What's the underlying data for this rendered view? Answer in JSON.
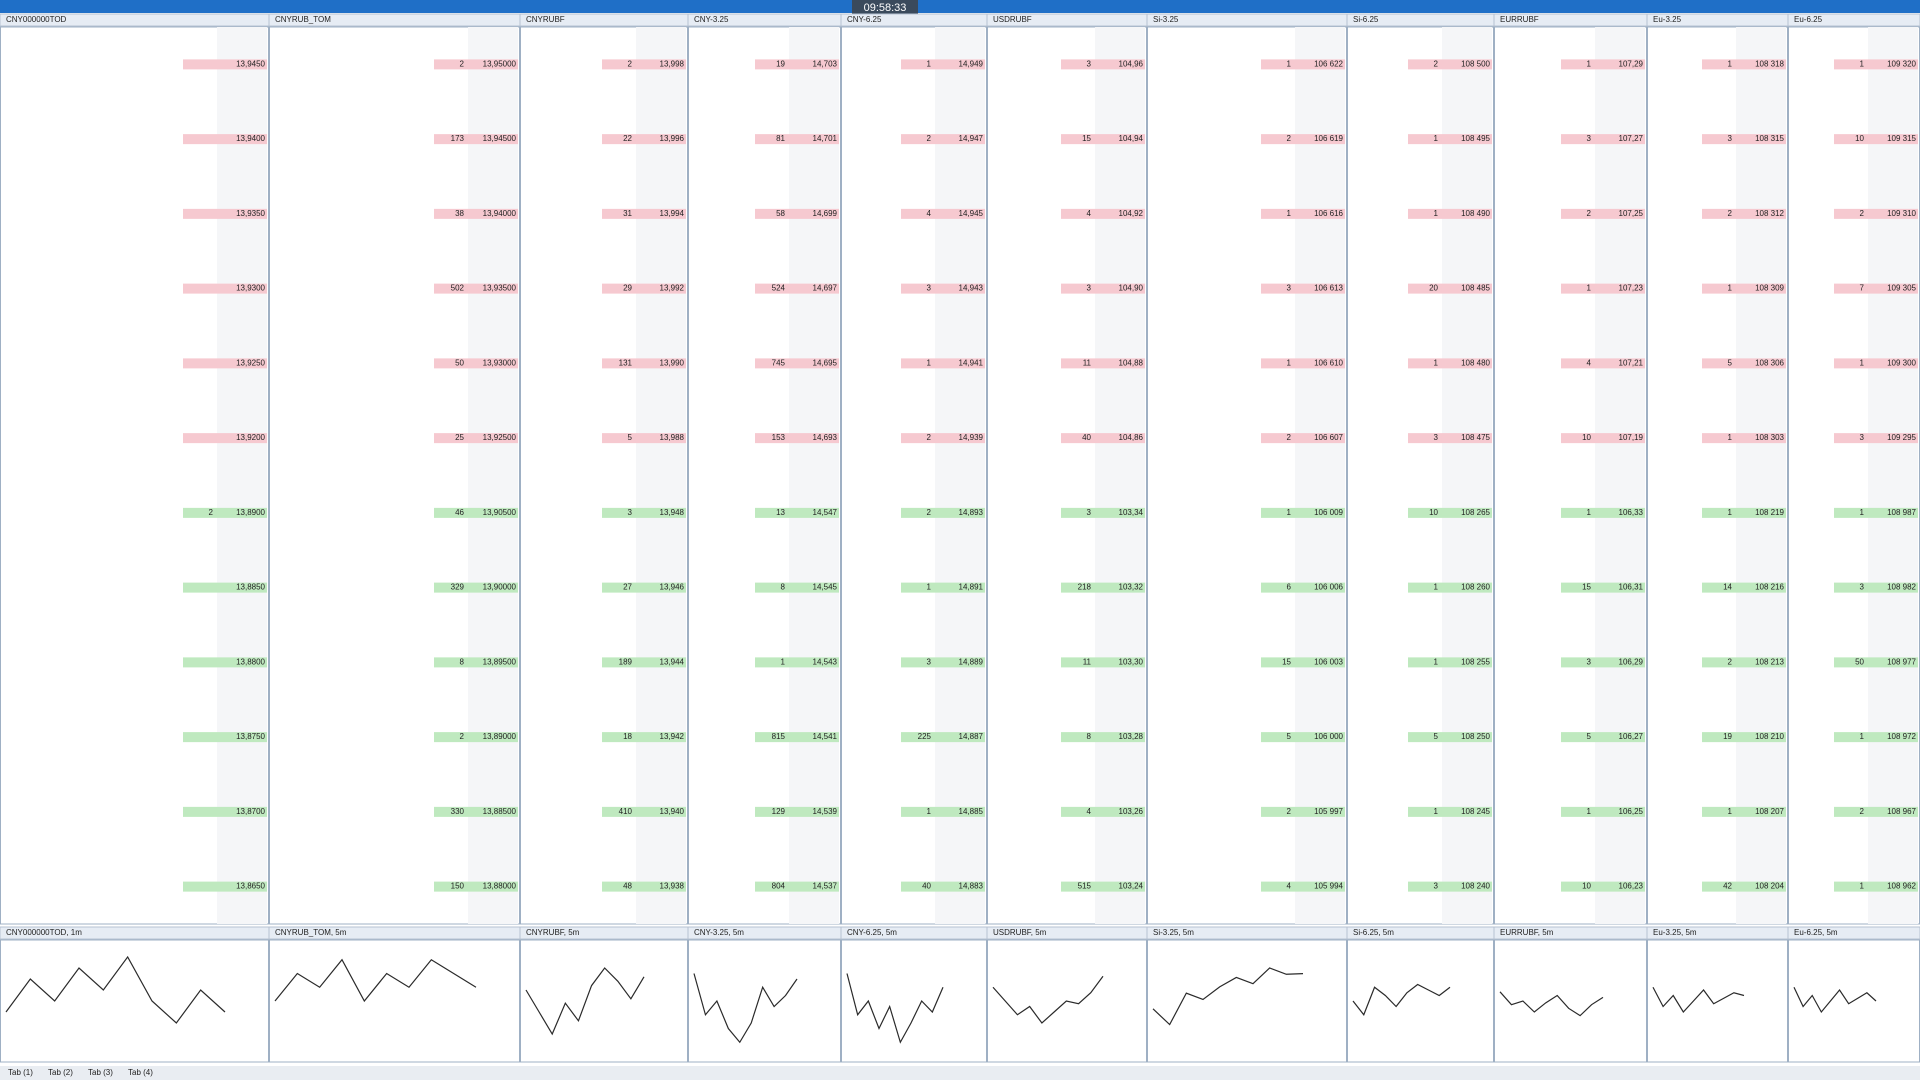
{
  "header": {
    "clock": "09:58:33"
  },
  "panels": [
    {
      "title": "CNY000000TOD",
      "asks": [
        [
          "13,9450",
          null
        ],
        [
          "13,9400",
          null
        ],
        [
          "13,9350",
          null
        ],
        [
          "13,9300",
          null
        ],
        [
          "13,9250",
          null
        ],
        [
          "13,9200",
          null
        ]
      ],
      "bids": [
        [
          "13,8900",
          2
        ],
        [
          "13,8850",
          null
        ],
        [
          "13,8800",
          null
        ],
        [
          "13,8750",
          null
        ],
        [
          "13,8700",
          null
        ],
        [
          "13,8650",
          null
        ]
      ]
    },
    {
      "title": "CNYRUB_TOM",
      "asks": [
        [
          "13,95000",
          2
        ],
        [
          "13,94500",
          173
        ],
        [
          "13,94000",
          38
        ],
        [
          "13,93500",
          502
        ],
        [
          "13,93000",
          50
        ],
        [
          "13,92500",
          25
        ]
      ],
      "bids": [
        [
          "13,90500",
          46
        ],
        [
          "13,90000",
          329
        ],
        [
          "13,89500",
          8
        ],
        [
          "13,89000",
          2
        ],
        [
          "13,88500",
          330
        ],
        [
          "13,88000",
          150
        ]
      ]
    },
    {
      "title": "CNYRUBF",
      "asks": [
        [
          "13,998",
          2
        ],
        [
          "13,996",
          22
        ],
        [
          "13,994",
          31
        ],
        [
          "13,992",
          29
        ],
        [
          "13,990",
          131
        ],
        [
          "13,988",
          5
        ]
      ],
      "bids": [
        [
          "13,948",
          3
        ],
        [
          "13,946",
          27
        ],
        [
          "13,944",
          189
        ],
        [
          "13,942",
          18
        ],
        [
          "13,940",
          410
        ],
        [
          "13,938",
          48
        ]
      ]
    },
    {
      "title": "CNY-3.25",
      "asks": [
        [
          "14,703",
          19
        ],
        [
          "14,701",
          81
        ],
        [
          "14,699",
          58
        ],
        [
          "14,697",
          524
        ],
        [
          "14,695",
          745
        ],
        [
          "14,693",
          153
        ]
      ],
      "bids": [
        [
          "14,547",
          13
        ],
        [
          "14,545",
          8
        ],
        [
          "14,543",
          1
        ],
        [
          "14,541",
          815
        ],
        [
          "14,539",
          129
        ],
        [
          "14,537",
          804
        ]
      ]
    },
    {
      "title": "CNY-6.25",
      "asks": [
        [
          "14,949",
          1
        ],
        [
          "14,947",
          2
        ],
        [
          "14,945",
          4
        ],
        [
          "14,943",
          3
        ],
        [
          "14,941",
          1
        ],
        [
          "14,939",
          2
        ]
      ],
      "bids": [
        [
          "14,893",
          2
        ],
        [
          "14,891",
          1
        ],
        [
          "14,889",
          3
        ],
        [
          "14,887",
          225
        ],
        [
          "14,885",
          1
        ],
        [
          "14,883",
          40
        ]
      ]
    },
    {
      "title": "USDRUBF",
      "asks": [
        [
          "104,96",
          3
        ],
        [
          "104,94",
          15
        ],
        [
          "104,92",
          4
        ],
        [
          "104,90",
          3
        ],
        [
          "104,88",
          11
        ],
        [
          "104,86",
          40
        ]
      ],
      "bids": [
        [
          "103,34",
          3
        ],
        [
          "103,32",
          218
        ],
        [
          "103,30",
          11
        ],
        [
          "103,28",
          8
        ],
        [
          "103,26",
          4
        ],
        [
          "103,24",
          515
        ]
      ]
    },
    {
      "title": "Si-3.25",
      "asks": [
        [
          "106 622",
          1
        ],
        [
          "106 619",
          2
        ],
        [
          "106 616",
          1
        ],
        [
          "106 613",
          3
        ],
        [
          "106 610",
          1
        ],
        [
          "106 607",
          2
        ]
      ],
      "bids": [
        [
          "106 009",
          1
        ],
        [
          "106 006",
          6
        ],
        [
          "106 003",
          15
        ],
        [
          "106 000",
          5
        ],
        [
          "105 997",
          2
        ],
        [
          "105 994",
          4
        ]
      ]
    },
    {
      "title": "Si-6.25",
      "asks": [
        [
          "108 500",
          2
        ],
        [
          "108 495",
          1
        ],
        [
          "108 490",
          1
        ],
        [
          "108 485",
          20
        ],
        [
          "108 480",
          1
        ],
        [
          "108 475",
          3
        ]
      ],
      "bids": [
        [
          "108 265",
          10
        ],
        [
          "108 260",
          1
        ],
        [
          "108 255",
          1
        ],
        [
          "108 250",
          5
        ],
        [
          "108 245",
          1
        ],
        [
          "108 240",
          3
        ]
      ]
    },
    {
      "title": "EURRUBF",
      "asks": [
        [
          "107,29",
          1
        ],
        [
          "107,27",
          3
        ],
        [
          "107,25",
          2
        ],
        [
          "107,23",
          1
        ],
        [
          "107,21",
          4
        ],
        [
          "107,19",
          10
        ]
      ],
      "bids": [
        [
          "106,33",
          1
        ],
        [
          "106,31",
          15
        ],
        [
          "106,29",
          3
        ],
        [
          "106,27",
          5
        ],
        [
          "106,25",
          1
        ],
        [
          "106,23",
          10
        ]
      ]
    },
    {
      "title": "Eu-3.25",
      "asks": [
        [
          "108 318",
          1
        ],
        [
          "108 315",
          3
        ],
        [
          "108 312",
          2
        ],
        [
          "108 309",
          1
        ],
        [
          "108 306",
          5
        ],
        [
          "108 303",
          1
        ]
      ],
      "bids": [
        [
          "108 219",
          1
        ],
        [
          "108 216",
          14
        ],
        [
          "108 213",
          2
        ],
        [
          "108 210",
          19
        ],
        [
          "108 207",
          1
        ],
        [
          "108 204",
          42
        ]
      ]
    },
    {
      "title": "Eu-6.25",
      "asks": [
        [
          "109 320",
          1
        ],
        [
          "109 315",
          10
        ],
        [
          "109 310",
          2
        ],
        [
          "109 305",
          7
        ],
        [
          "109 300",
          1
        ],
        [
          "109 295",
          3
        ]
      ],
      "bids": [
        [
          "108 987",
          1
        ],
        [
          "108 982",
          3
        ],
        [
          "108 977",
          50
        ],
        [
          "108 972",
          1
        ],
        [
          "108 967",
          2
        ],
        [
          "108 962",
          1
        ]
      ]
    }
  ],
  "charts": [
    {
      "type": "line",
      "title": "CNY000000TOD, 1m",
      "ylim": [
        13.86,
        13.96
      ],
      "values": [
        13.9,
        13.93,
        13.91,
        13.94,
        13.92,
        13.95,
        13.91,
        13.89,
        13.92,
        13.9
      ],
      "color": "#2a2a2a"
    },
    {
      "type": "line",
      "title": "CNYRUB_TOM, 5m",
      "ylim": [
        13.88,
        13.96
      ],
      "values": [
        13.92,
        13.94,
        13.93,
        13.95,
        13.92,
        13.94,
        13.93,
        13.95,
        13.94,
        13.93
      ],
      "color": "#2a2a2a"
    },
    {
      "type": "line",
      "title": "CNYRUBF, 5m",
      "ylim": [
        13.8,
        14.05
      ],
      "values": [
        13.95,
        13.9,
        13.85,
        13.92,
        13.88,
        13.96,
        14.0,
        13.97,
        13.93,
        13.98
      ],
      "color": "#2a2a2a"
    },
    {
      "type": "line",
      "title": "CNY-3.25, 5m",
      "ylim": [
        14.4,
        14.8
      ],
      "values": [
        14.7,
        14.55,
        14.6,
        14.5,
        14.45,
        14.52,
        14.65,
        14.58,
        14.62,
        14.68
      ],
      "color": "#2a2a2a"
    },
    {
      "type": "line",
      "title": "CNY-6.25, 5m",
      "ylim": [
        14.7,
        15.1
      ],
      "values": [
        15.0,
        14.85,
        14.9,
        14.8,
        14.88,
        14.75,
        14.82,
        14.9,
        14.86,
        14.95
      ],
      "color": "#2a2a2a"
    },
    {
      "type": "line",
      "title": "USDRUBF, 5m",
      "ylim": [
        102,
        106
      ],
      "values": [
        104.5,
        104.0,
        103.5,
        103.8,
        103.2,
        103.6,
        104.0,
        103.9,
        104.3,
        104.9
      ],
      "color": "#2a2a2a"
    },
    {
      "type": "line",
      "title": "Si-3.25, 5m",
      "ylim": [
        104000,
        107500
      ],
      "values": [
        105500,
        105000,
        106000,
        105800,
        106200,
        106500,
        106300,
        106800,
        106600,
        106622
      ],
      "color": "#2a2a2a"
    },
    {
      "type": "line",
      "title": "Si-6.25, 5m",
      "ylim": [
        106000,
        110000
      ],
      "values": [
        108000,
        107500,
        108500,
        108200,
        107800,
        108300,
        108600,
        108400,
        108200,
        108500
      ],
      "color": "#2a2a2a"
    },
    {
      "type": "line",
      "title": "EURRUBF, 5m",
      "ylim": [
        104,
        110
      ],
      "values": [
        107.5,
        106.8,
        107.0,
        106.4,
        106.9,
        107.3,
        106.6,
        106.2,
        106.8,
        107.2
      ],
      "color": "#2a2a2a"
    },
    {
      "type": "line",
      "title": "Eu-3.25, 5m",
      "ylim": [
        106000,
        110000
      ],
      "values": [
        108500,
        107800,
        108200,
        107600,
        108000,
        108400,
        107900,
        108100,
        108300,
        108200
      ],
      "color": "#2a2a2a"
    },
    {
      "type": "line",
      "title": "Eu-6.25, 5m",
      "ylim": [
        107000,
        111000
      ],
      "values": [
        109500,
        108800,
        109200,
        108600,
        109000,
        109400,
        108900,
        109100,
        109300,
        109000
      ],
      "color": "#2a2a2a"
    }
  ],
  "footer_tabs": [
    "Tab (1)",
    "Tab (2)",
    "Tab (3)",
    "Tab (4)"
  ]
}
